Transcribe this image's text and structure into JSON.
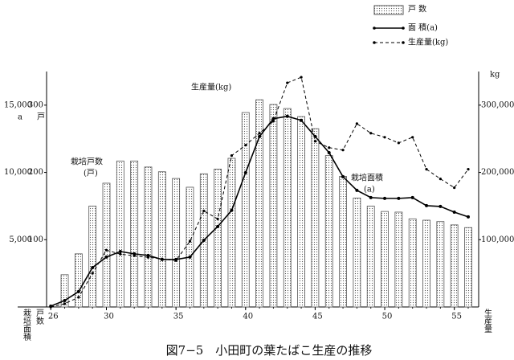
{
  "chart_data": {
    "type": "bar",
    "caption": "図7−5　小田町の葉たばこ生産の推移",
    "x": [
      26,
      27,
      28,
      29,
      30,
      31,
      32,
      33,
      34,
      35,
      36,
      37,
      38,
      39,
      40,
      41,
      42,
      43,
      44,
      45,
      46,
      47,
      48,
      49,
      50,
      51,
      52,
      53,
      54,
      55,
      56
    ],
    "xlim": [
      25.7,
      56.75
    ],
    "xticks": [
      26,
      30,
      35,
      40,
      45,
      50,
      55
    ],
    "ylim": [
      0,
      350
    ],
    "yticks": [
      100,
      200,
      300
    ],
    "y_unit": "戸",
    "y_axis_label": "戸数",
    "y3lim": [
      0,
      17500
    ],
    "y3ticks": [
      {
        "value": 5000,
        "label": "5,000"
      },
      {
        "value": 10000,
        "label": "10,000"
      },
      {
        "value": 15000,
        "label": "15,000"
      }
    ],
    "y3_unit": "a",
    "y3_axis_label": "栽培面積",
    "y2lim": [
      0,
      350000
    ],
    "y2ticks": [
      {
        "value": 100000,
        "label": "100,000"
      },
      {
        "value": 200000,
        "label": "200,000"
      },
      {
        "value": 300000,
        "label": "300,000"
      }
    ],
    "y2_unit": "kg",
    "y2_axis_label": "生産量",
    "series": [
      {
        "name": "戸 数",
        "type": "bar",
        "color": "#555555",
        "axis": "y",
        "values": [
          null,
          48,
          79,
          150,
          184,
          217,
          217,
          208,
          201,
          191,
          178,
          198,
          205,
          221,
          289,
          308,
          301,
          295,
          283,
          265,
          225,
          194,
          162,
          150,
          142,
          141,
          131,
          129,
          127,
          122,
          118
        ]
      },
      {
        "name": "面 積(a)",
        "type": "line",
        "color": "#000000",
        "axis": "y3",
        "values": [
          60,
          480,
          1140,
          2930,
          3710,
          4120,
          3950,
          3830,
          3530,
          3530,
          3710,
          4960,
          5980,
          7180,
          9980,
          12670,
          13990,
          14170,
          13870,
          12670,
          11470,
          9680,
          8670,
          8130,
          8070,
          8070,
          8130,
          7530,
          7470,
          7050,
          6700
        ]
      },
      {
        "name": "生産量(kg)",
        "type": "dashed-line",
        "color": "#000000",
        "axis": "y2",
        "values": [
          0,
          4800,
          14300,
          50000,
          84500,
          78500,
          76200,
          73800,
          71400,
          69000,
          97600,
          142800,
          130900,
          225000,
          240500,
          258300,
          276100,
          333200,
          341500,
          246400,
          236800,
          233300,
          272500,
          258300,
          252300,
          243900,
          252300,
          204700,
          190400,
          177300,
          204700
        ]
      }
    ],
    "annotations": [
      {
        "lines": [
          "栽培戸数",
          "(戸)"
        ]
      },
      {
        "lines": [
          "生産量(kg)"
        ]
      },
      {
        "lines": [
          "栽培面積",
          "(a)"
        ]
      }
    ]
  }
}
